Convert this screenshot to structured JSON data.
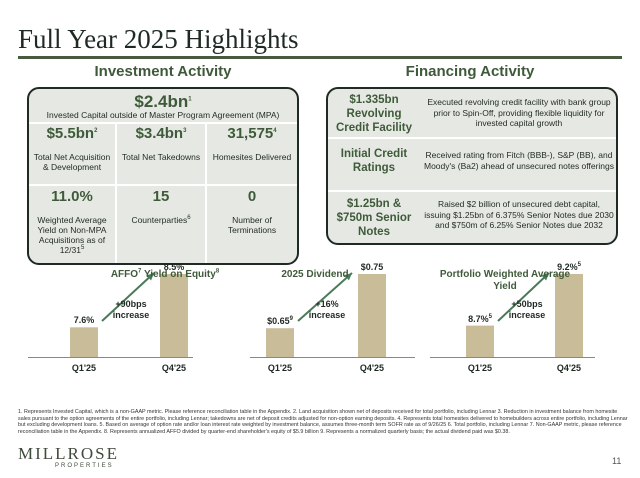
{
  "title": "Full Year 2025 Highlights",
  "investment": {
    "heading": "Investment Activity",
    "top_value": "$2.4bn",
    "top_sup": "1",
    "top_desc": "Invested Capital outside of Master Program Agreement (MPA)",
    "cells": [
      {
        "value": "$5.5bn",
        "sup": "2",
        "desc": "Total Net Acquisition & Development",
        "desc_sup": ""
      },
      {
        "value": "$3.4bn",
        "sup": "3",
        "desc": "Total Net Takedowns",
        "desc_sup": ""
      },
      {
        "value": "31,575",
        "sup": "4",
        "desc": "Homesites Delivered",
        "desc_sup": ""
      },
      {
        "value": "11.0%",
        "sup": "",
        "desc": "Weighted Average Yield on Non-MPA Acquisitions as of 12/31",
        "desc_sup": "5"
      },
      {
        "value": "15",
        "sup": "",
        "desc": "Counterparties",
        "desc_sup": "6"
      },
      {
        "value": "0",
        "sup": "",
        "desc": "Number of Terminations",
        "desc_sup": ""
      }
    ]
  },
  "financing": {
    "heading": "Financing Activity",
    "rows": [
      {
        "label": "$1.335bn Revolving Credit Facility",
        "text": "Executed revolving credit facility with bank group prior to Spin-Off, providing flexible liquidity for invested capital growth"
      },
      {
        "label": "Initial Credit Ratings",
        "text": "Received rating from Fitch (BBB-), S&P (BB), and Moody's (Ba2) ahead of unsecured notes offerings"
      },
      {
        "label": "$1.25bn & $750m Senior Notes",
        "text": "Raised $2 billion of unsecured debt capital, issuing $1.25bn of 6.375% Senior Notes due 2030 and $750m of 6.25% Senior Notes due 2032"
      }
    ]
  },
  "chart_data": [
    {
      "type": "bar",
      "title": "AFFO",
      "title_sup1": "7",
      "title_rest": " Yield on Equity",
      "title_sup2": "8",
      "categories": [
        "Q1'25",
        "Q4'25"
      ],
      "values": [
        7.6,
        8.5
      ],
      "labels": [
        "7.6%",
        "8.5%"
      ],
      "label_sups": [
        "",
        ""
      ],
      "increase": "+90bps increase",
      "increase_line1": "+90bps",
      "increase_line2": "increase"
    },
    {
      "type": "bar",
      "title": "2025 Dividend",
      "title_sup1": "",
      "title_rest": "",
      "title_sup2": "",
      "categories": [
        "Q1'25",
        "Q4'25"
      ],
      "values": [
        0.65,
        0.75
      ],
      "labels": [
        "$0.65",
        "$0.75"
      ],
      "label_sups": [
        "9",
        ""
      ],
      "increase": "+16% increase",
      "increase_line1": "+16%",
      "increase_line2": "increase"
    },
    {
      "type": "bar",
      "title": "Portfolio Weighted Average Yield",
      "title_sup1": "",
      "title_rest": "",
      "title_sup2": "",
      "categories": [
        "Q1'25",
        "Q4'25"
      ],
      "values": [
        8.7,
        9.2
      ],
      "labels": [
        "8.7%",
        "9.2%"
      ],
      "label_sups": [
        "5",
        "5"
      ],
      "increase": "+50bps increase",
      "increase_line1": "+50bps",
      "increase_line2": "increase"
    }
  ],
  "colors": {
    "bar": "#c9bc99",
    "accent": "#3f5a3a",
    "box_fill": "#e6e9e3",
    "arrow": "#4a7a5a"
  },
  "footnote": "1. Represents Invested Capital, which is a non-GAAP metric. Please reference reconciliation table in the Appendix. 2. Land acquisition shown net of deposits received for total portfolio, including Lennar 3. Reduction in investment balance from homesite sales pursuant to the option agreements of the entire portfolio, including Lennar; takedowns are net of deposit credits adjusted for non-option earning deposits. 4. Represents total homesites delivered to homebuilders across entire portfolio, including Lennar but excluding development loans. 5. Based on average of option rate and/or loan interest rate weighted by investment balance, assumes three-month term SOFR rate as of 9/26/25 6. Total portfolio, including Lennar 7. Non-GAAP metric, please reference reconciliation table in the Appendix. 8. Represents annualized AFFO divided by quarter-end shareholder's equity of $5.9 billion 9. Represents a normalized quarterly basis; the actual dividend paid was $0.38.",
  "logo": {
    "name": "MILLROSE",
    "sub": "PROPERTIES"
  },
  "page_number": "11"
}
